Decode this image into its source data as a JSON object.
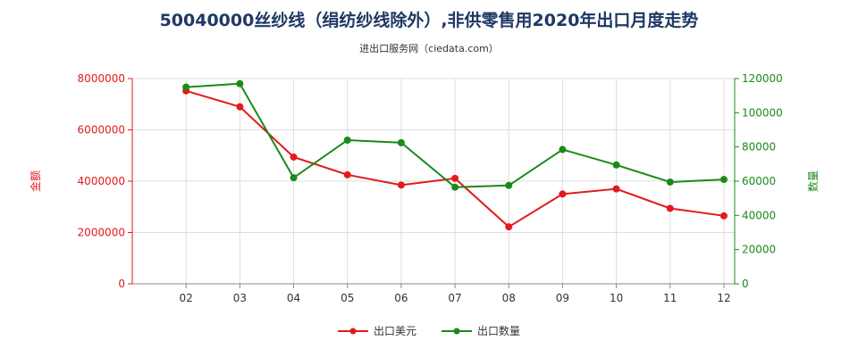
{
  "title": "50040000丝纱线（绢纺纱线除外）,非供零售用2020年出口月度走势",
  "subtitle": "进出口服务网（ciedata.com）",
  "colors": {
    "left_axis": "#e31a1c",
    "right_axis": "#1a8a1a",
    "series_1": "#e31a1c",
    "series_2": "#1a8a1a",
    "grid": "#dddddd"
  },
  "chart_data": {
    "type": "line",
    "title": "50040000丝纱线（绢纺纱线除外）,非供零售用2020年出口月度走势",
    "categories": [
      "02",
      "03",
      "04",
      "05",
      "06",
      "07",
      "08",
      "09",
      "10",
      "11",
      "12"
    ],
    "ylabel_left": "金额",
    "ylabel_right": "数量",
    "ylim_left": [
      0,
      8000000
    ],
    "ylim_right": [
      0,
      120000
    ],
    "yticks_left": [
      0,
      2000000,
      4000000,
      6000000,
      8000000
    ],
    "yticks_right": [
      0,
      20000,
      40000,
      60000,
      80000,
      100000,
      120000
    ],
    "grid": true,
    "legend_position": "bottom",
    "series": [
      {
        "name": "出口美元",
        "axis": "left",
        "values": [
          7520000,
          6900000,
          4940000,
          4250000,
          3850000,
          4110000,
          2220000,
          3500000,
          3700000,
          2940000,
          2650000
        ]
      },
      {
        "name": "出口数量",
        "axis": "right",
        "values": [
          115000,
          117000,
          62000,
          84000,
          82500,
          56500,
          57500,
          78500,
          69500,
          59500,
          61000
        ]
      }
    ]
  }
}
